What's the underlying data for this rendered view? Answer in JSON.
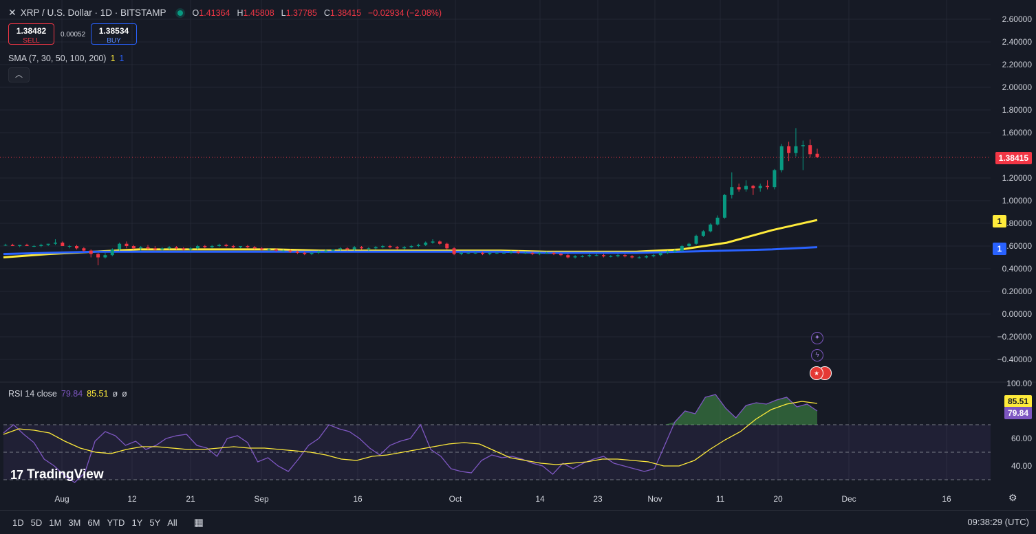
{
  "header": {
    "close_glyph": "✕",
    "symbol": "XRP / U.S. Dollar · 1D · BITSTAMP",
    "ohlc": [
      {
        "k": "O",
        "v": "1.41364"
      },
      {
        "k": "H",
        "v": "1.45808"
      },
      {
        "k": "L",
        "v": "1.37785"
      },
      {
        "k": "C",
        "v": "1.38415"
      }
    ],
    "change": "−0.02934 (−2.08%)"
  },
  "trade": {
    "sell_price": "1.38482",
    "sell_label": "SELL",
    "spread": "0.00052",
    "buy_price": "1.38534",
    "buy_label": "BUY"
  },
  "sma_legend": {
    "label": "SMA (7, 30, 50, 100, 200)",
    "v1": "1",
    "v2": "1"
  },
  "rsi_legend": {
    "label": "RSI 14 close",
    "rsi": "79.84",
    "ma": "85.51",
    "n1": "ø",
    "n2": "ø"
  },
  "tags": {
    "last_price": "1.38415",
    "sma_fast": "1",
    "sma_slow": "1",
    "rsi_ma": "85.51",
    "rsi": "79.84"
  },
  "brand": "TradingView",
  "bottom_bar": {
    "ranges": [
      "1D",
      "5D",
      "1M",
      "3M",
      "6M",
      "YTD",
      "1Y",
      "5Y",
      "All"
    ],
    "time": "09:38:29 (UTC)"
  },
  "colors": {
    "background": "#161a25",
    "grid": "#232733",
    "up": "#089981",
    "down": "#f23645",
    "sma_yellow": "#ffeb3b",
    "sma_blue": "#2962ff",
    "rsi": "#7e57c2",
    "rsi_ma": "#ffeb3b"
  },
  "icons": [
    "close-icon",
    "status-dot-icon",
    "chevron-up-icon",
    "rocket-icon",
    "lightning-icon",
    "us-flag-icon",
    "compare-icon",
    "settings-icon"
  ],
  "chart_data": {
    "type": "candlestick",
    "title": "XRP / U.S. Dollar · 1D · BITSTAMP",
    "price_axis": {
      "ticks": [
        "2.60000",
        "2.40000",
        "2.20000",
        "2.00000",
        "1.80000",
        "1.60000",
        "1.20000",
        "1.00000",
        "0.80000",
        "0.60000",
        "0.40000",
        "0.20000",
        "0.00000",
        "−0.20000",
        "−0.40000"
      ],
      "range": [
        -0.5,
        2.65
      ]
    },
    "x_axis": {
      "ticks": [
        "Aug",
        "12",
        "21",
        "Sep",
        "16",
        "Oct",
        "14",
        "23",
        "Nov",
        "11",
        "20",
        "Dec",
        "16"
      ]
    },
    "last_price": 1.38415,
    "candles_ohlc": [
      [
        0.61,
        0.62,
        0.6,
        0.61
      ],
      [
        0.61,
        0.62,
        0.6,
        0.6
      ],
      [
        0.6,
        0.61,
        0.59,
        0.61
      ],
      [
        0.61,
        0.62,
        0.6,
        0.6
      ],
      [
        0.6,
        0.61,
        0.59,
        0.6
      ],
      [
        0.6,
        0.62,
        0.59,
        0.61
      ],
      [
        0.61,
        0.62,
        0.6,
        0.62
      ],
      [
        0.62,
        0.66,
        0.61,
        0.63
      ],
      [
        0.63,
        0.64,
        0.6,
        0.6
      ],
      [
        0.6,
        0.61,
        0.58,
        0.6
      ],
      [
        0.6,
        0.61,
        0.57,
        0.58
      ],
      [
        0.58,
        0.59,
        0.55,
        0.56
      ],
      [
        0.56,
        0.57,
        0.5,
        0.53
      ],
      [
        0.53,
        0.54,
        0.43,
        0.5
      ],
      [
        0.5,
        0.54,
        0.49,
        0.52
      ],
      [
        0.52,
        0.58,
        0.51,
        0.57
      ],
      [
        0.57,
        0.63,
        0.56,
        0.62
      ],
      [
        0.62,
        0.64,
        0.58,
        0.6
      ],
      [
        0.6,
        0.61,
        0.57,
        0.58
      ],
      [
        0.58,
        0.6,
        0.56,
        0.59
      ],
      [
        0.59,
        0.61,
        0.57,
        0.58
      ],
      [
        0.58,
        0.6,
        0.56,
        0.57
      ],
      [
        0.57,
        0.59,
        0.56,
        0.58
      ],
      [
        0.58,
        0.6,
        0.57,
        0.59
      ],
      [
        0.59,
        0.6,
        0.57,
        0.58
      ],
      [
        0.58,
        0.59,
        0.56,
        0.57
      ],
      [
        0.57,
        0.59,
        0.56,
        0.58
      ],
      [
        0.58,
        0.61,
        0.57,
        0.6
      ],
      [
        0.6,
        0.61,
        0.58,
        0.59
      ],
      [
        0.59,
        0.61,
        0.58,
        0.6
      ],
      [
        0.6,
        0.62,
        0.59,
        0.61
      ],
      [
        0.61,
        0.62,
        0.59,
        0.6
      ],
      [
        0.6,
        0.61,
        0.58,
        0.59
      ],
      [
        0.59,
        0.6,
        0.58,
        0.6
      ],
      [
        0.6,
        0.61,
        0.58,
        0.59
      ],
      [
        0.59,
        0.6,
        0.57,
        0.58
      ],
      [
        0.58,
        0.59,
        0.56,
        0.57
      ],
      [
        0.57,
        0.58,
        0.56,
        0.57
      ],
      [
        0.57,
        0.58,
        0.55,
        0.56
      ],
      [
        0.56,
        0.57,
        0.55,
        0.56
      ],
      [
        0.56,
        0.57,
        0.54,
        0.55
      ],
      [
        0.55,
        0.56,
        0.53,
        0.54
      ],
      [
        0.54,
        0.55,
        0.52,
        0.53
      ],
      [
        0.53,
        0.55,
        0.52,
        0.54
      ],
      [
        0.54,
        0.56,
        0.53,
        0.55
      ],
      [
        0.55,
        0.57,
        0.54,
        0.56
      ],
      [
        0.56,
        0.57,
        0.55,
        0.57
      ],
      [
        0.57,
        0.59,
        0.56,
        0.58
      ],
      [
        0.58,
        0.59,
        0.56,
        0.57
      ],
      [
        0.57,
        0.6,
        0.56,
        0.59
      ],
      [
        0.59,
        0.6,
        0.57,
        0.58
      ],
      [
        0.58,
        0.59,
        0.56,
        0.58
      ],
      [
        0.58,
        0.6,
        0.57,
        0.59
      ],
      [
        0.59,
        0.61,
        0.58,
        0.6
      ],
      [
        0.6,
        0.61,
        0.58,
        0.59
      ],
      [
        0.59,
        0.6,
        0.57,
        0.58
      ],
      [
        0.58,
        0.6,
        0.57,
        0.59
      ],
      [
        0.59,
        0.61,
        0.58,
        0.6
      ],
      [
        0.6,
        0.62,
        0.59,
        0.61
      ],
      [
        0.61,
        0.64,
        0.6,
        0.63
      ],
      [
        0.63,
        0.66,
        0.62,
        0.64
      ],
      [
        0.64,
        0.65,
        0.61,
        0.62
      ],
      [
        0.62,
        0.63,
        0.57,
        0.58
      ],
      [
        0.58,
        0.59,
        0.52,
        0.53
      ],
      [
        0.53,
        0.55,
        0.52,
        0.54
      ],
      [
        0.54,
        0.55,
        0.53,
        0.54
      ],
      [
        0.54,
        0.55,
        0.53,
        0.54
      ],
      [
        0.54,
        0.55,
        0.52,
        0.53
      ],
      [
        0.53,
        0.55,
        0.52,
        0.54
      ],
      [
        0.54,
        0.55,
        0.53,
        0.54
      ],
      [
        0.54,
        0.55,
        0.53,
        0.54
      ],
      [
        0.54,
        0.56,
        0.53,
        0.55
      ],
      [
        0.55,
        0.56,
        0.53,
        0.54
      ],
      [
        0.54,
        0.55,
        0.53,
        0.54
      ],
      [
        0.54,
        0.55,
        0.52,
        0.53
      ],
      [
        0.53,
        0.55,
        0.52,
        0.54
      ],
      [
        0.54,
        0.55,
        0.53,
        0.54
      ],
      [
        0.54,
        0.55,
        0.52,
        0.53
      ],
      [
        0.53,
        0.54,
        0.51,
        0.52
      ],
      [
        0.52,
        0.53,
        0.49,
        0.5
      ],
      [
        0.5,
        0.52,
        0.49,
        0.51
      ],
      [
        0.51,
        0.52,
        0.5,
        0.51
      ],
      [
        0.51,
        0.53,
        0.5,
        0.52
      ],
      [
        0.52,
        0.53,
        0.51,
        0.52
      ],
      [
        0.52,
        0.53,
        0.5,
        0.51
      ],
      [
        0.51,
        0.52,
        0.5,
        0.51
      ],
      [
        0.51,
        0.53,
        0.5,
        0.52
      ],
      [
        0.52,
        0.53,
        0.5,
        0.51
      ],
      [
        0.51,
        0.52,
        0.49,
        0.5
      ],
      [
        0.5,
        0.51,
        0.49,
        0.5
      ],
      [
        0.5,
        0.52,
        0.49,
        0.51
      ],
      [
        0.51,
        0.53,
        0.5,
        0.52
      ],
      [
        0.52,
        0.55,
        0.51,
        0.54
      ],
      [
        0.54,
        0.56,
        0.53,
        0.55
      ],
      [
        0.55,
        0.57,
        0.54,
        0.56
      ],
      [
        0.56,
        0.61,
        0.55,
        0.6
      ],
      [
        0.6,
        0.63,
        0.59,
        0.62
      ],
      [
        0.62,
        0.7,
        0.61,
        0.69
      ],
      [
        0.69,
        0.74,
        0.68,
        0.73
      ],
      [
        0.73,
        0.8,
        0.72,
        0.79
      ],
      [
        0.79,
        0.87,
        0.78,
        0.85
      ],
      [
        0.85,
        1.06,
        0.84,
        1.05
      ],
      [
        1.05,
        1.25,
        1.02,
        1.12
      ],
      [
        1.12,
        1.15,
        1.08,
        1.1
      ],
      [
        1.1,
        1.18,
        1.08,
        1.13
      ],
      [
        1.13,
        1.14,
        1.05,
        1.11
      ],
      [
        1.11,
        1.15,
        1.08,
        1.13
      ],
      [
        1.13,
        1.18,
        1.1,
        1.12
      ],
      [
        1.12,
        1.28,
        1.1,
        1.27
      ],
      [
        1.27,
        1.5,
        1.25,
        1.48
      ],
      [
        1.48,
        1.52,
        1.35,
        1.42
      ],
      [
        1.42,
        1.64,
        1.39,
        1.48
      ],
      [
        1.48,
        1.53,
        1.27,
        1.49
      ],
      [
        1.49,
        1.54,
        1.38,
        1.41
      ],
      [
        1.41364,
        1.45808,
        1.37785,
        1.38415
      ]
    ],
    "sma_yellow": [
      0.5,
      0.53,
      0.55,
      0.57,
      0.57,
      0.57,
      0.57,
      0.56,
      0.56,
      0.56,
      0.56,
      0.56,
      0.55,
      0.55,
      0.55,
      0.57,
      0.63,
      0.74,
      0.83
    ],
    "sma_blue": [
      0.53,
      0.54,
      0.55,
      0.55,
      0.55,
      0.55,
      0.55,
      0.55,
      0.55,
      0.55,
      0.55,
      0.55,
      0.54,
      0.54,
      0.54,
      0.55,
      0.56,
      0.57,
      0.59
    ],
    "rsi_axis": {
      "ticks": [
        "100.00",
        "60.00",
        "40.00"
      ],
      "overbought": 70,
      "oversold": 30,
      "mid": 50
    },
    "rsi": [
      64,
      70,
      63,
      57,
      45,
      40,
      33,
      28,
      35,
      58,
      65,
      62,
      55,
      58,
      52,
      55,
      60,
      62,
      63,
      55,
      53,
      47,
      60,
      62,
      57,
      43,
      46,
      40,
      36,
      45,
      55,
      60,
      70,
      67,
      65,
      60,
      53,
      48,
      55,
      58,
      60,
      70,
      52,
      47,
      38,
      36,
      35,
      44,
      48,
      46,
      47,
      45,
      42,
      40,
      34,
      42,
      38,
      42,
      45,
      47,
      42,
      40,
      38,
      36,
      38,
      55,
      72,
      80,
      78,
      90,
      92,
      82,
      75,
      84,
      86,
      85,
      88,
      90,
      83,
      85,
      80
    ],
    "rsi_ma": [
      63,
      67,
      66,
      64,
      58,
      53,
      50,
      49,
      52,
      54,
      54,
      53,
      52,
      52,
      53,
      54,
      53,
      53,
      52,
      51,
      50,
      48,
      45,
      44,
      47,
      48,
      50,
      52,
      54,
      56,
      57,
      56,
      51,
      46,
      44,
      42,
      41,
      42,
      43,
      45,
      45,
      44,
      43,
      40,
      40,
      44,
      52,
      59,
      65,
      74,
      81,
      85,
      87,
      85.51
    ]
  }
}
